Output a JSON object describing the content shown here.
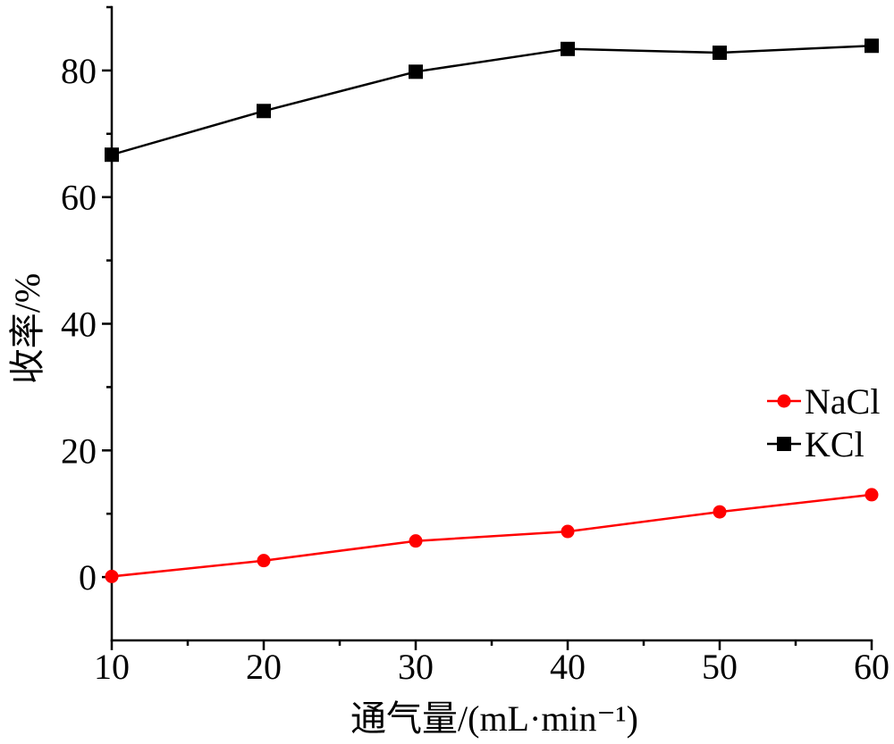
{
  "chart_data": {
    "type": "line",
    "xlabel": "通气量/(mL·min⁻¹)",
    "ylabel": "收率/%",
    "x": [
      10,
      20,
      30,
      40,
      50,
      60
    ],
    "xlim": [
      10,
      60
    ],
    "ylim": [
      -10,
      90
    ],
    "xticks": [
      10,
      20,
      30,
      40,
      50,
      60
    ],
    "yticks": [
      0,
      20,
      40,
      60,
      80
    ],
    "x_minor_step": 5,
    "y_minor_step": 10,
    "grid": false,
    "legend_position": "right",
    "series": [
      {
        "name": "NaCl",
        "values": [
          0.1,
          2.6,
          5.7,
          7.2,
          10.3,
          13.0
        ],
        "color": "#ff0000",
        "marker": "circle"
      },
      {
        "name": "KCl",
        "values": [
          66.7,
          73.6,
          79.8,
          83.4,
          82.8,
          83.9
        ],
        "color": "#000000",
        "marker": "square"
      }
    ]
  }
}
